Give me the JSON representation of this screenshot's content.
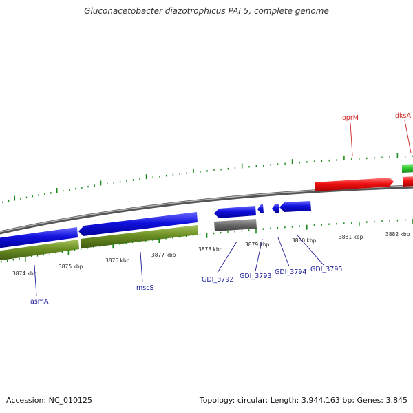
{
  "title": "Gluconacetobacter diazotrophicus PAI 5, complete genome",
  "footer": {
    "accession": "Accession: NC_010125",
    "summary": "Topology: circular; Length: 3,944,163 bp; Genes: 3,845"
  },
  "colors": {
    "forward_cds": "#ee1111",
    "forward_gene": "#33cc33",
    "reverse_cds": "#1111dd",
    "reverse_gene": "#6b8e23",
    "other": "#6e6e6e",
    "backbone": "#8a8a8a",
    "ticks": "#1a8a1a",
    "forward_label": "#cc2222",
    "reverse_label": "#1a1a99"
  },
  "scale_labels": [
    "3874 kbp",
    "3875 kbp",
    "3876 kbp",
    "3877 kbp",
    "3878 kbp",
    "3879 kbp",
    "3880 kbp",
    "3881 kbp",
    "3882 kbp"
  ],
  "gene_labels": {
    "oprM": "oprM",
    "dksA": "dksA",
    "asmA": "asmA",
    "mscS": "mscS",
    "gdi3792": "GDI_3792",
    "gdi3793": "GDI_3793",
    "gdi3794": "GDI_3794",
    "gdi3795": "GDI_3795"
  }
}
